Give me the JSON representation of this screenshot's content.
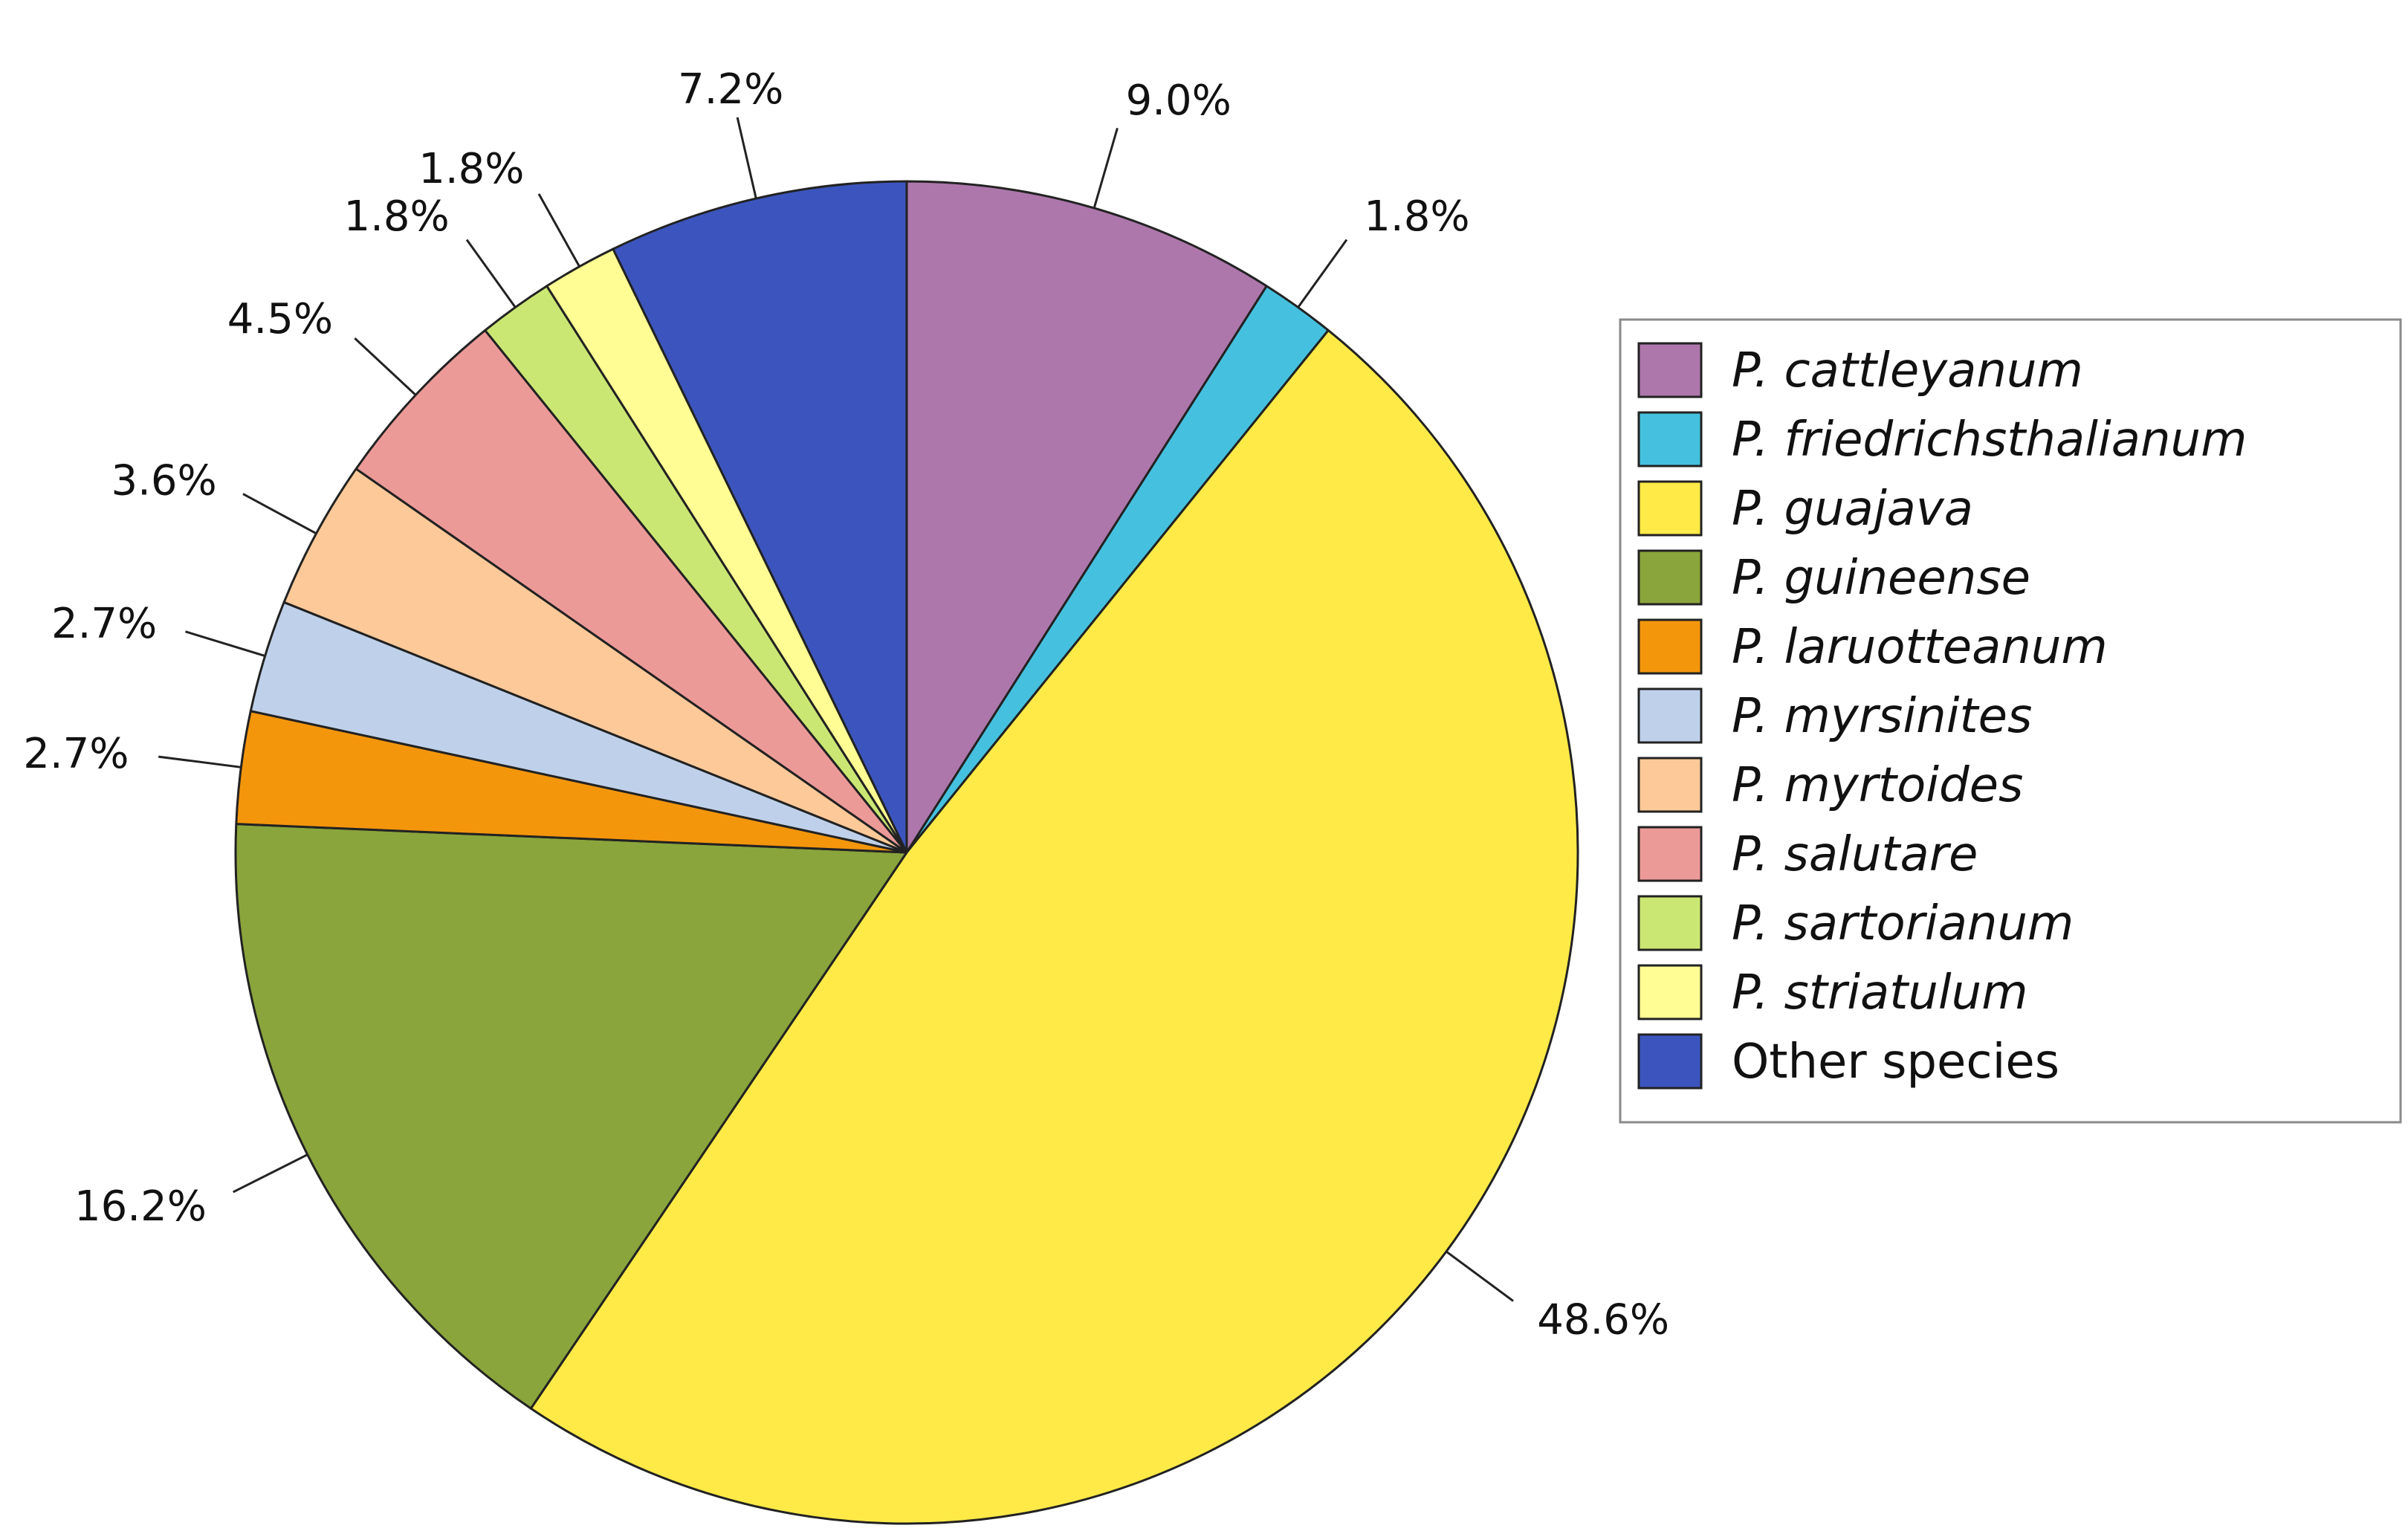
{
  "chart_data": {
    "type": "pie",
    "title": "",
    "start_angle_deg": 0,
    "direction": "clockwise",
    "legend_placement": "right",
    "slices": [
      {
        "name": "P. cattleyanum",
        "value": 9.0,
        "label": "9.0%",
        "color": "#ad77ac",
        "italic": true
      },
      {
        "name": "P. friedrichsthalianum",
        "value": 1.8,
        "label": "1.8%",
        "color": "#45c1df",
        "italic": true
      },
      {
        "name": "P. guajava",
        "value": 48.6,
        "label": "48.6%",
        "color": "#ffea47",
        "italic": true
      },
      {
        "name": "P. guineense",
        "value": 16.2,
        "label": "16.2%",
        "color": "#8aa53b",
        "italic": true
      },
      {
        "name": "P. laruotteanum",
        "value": 2.7,
        "label": "2.7%",
        "color": "#f4960c",
        "italic": true
      },
      {
        "name": "P. myrsinites",
        "value": 2.7,
        "label": "2.7%",
        "color": "#bfd1ea",
        "italic": true
      },
      {
        "name": "P. myrtoides",
        "value": 3.6,
        "label": "3.6%",
        "color": "#fdc999",
        "italic": true
      },
      {
        "name": "P. salutare",
        "value": 4.5,
        "label": "4.5%",
        "color": "#ec9a98",
        "italic": true
      },
      {
        "name": "P. sartorianum",
        "value": 1.8,
        "label": "1.8%",
        "color": "#cbe773",
        "italic": true
      },
      {
        "name": "P. striatulum",
        "value": 1.8,
        "label": "1.8%",
        "color": "#fffd94",
        "italic": true
      },
      {
        "name": "Other species",
        "value": 7.2,
        "label": "7.2%",
        "color": "#3c55be",
        "italic": false
      }
    ]
  }
}
